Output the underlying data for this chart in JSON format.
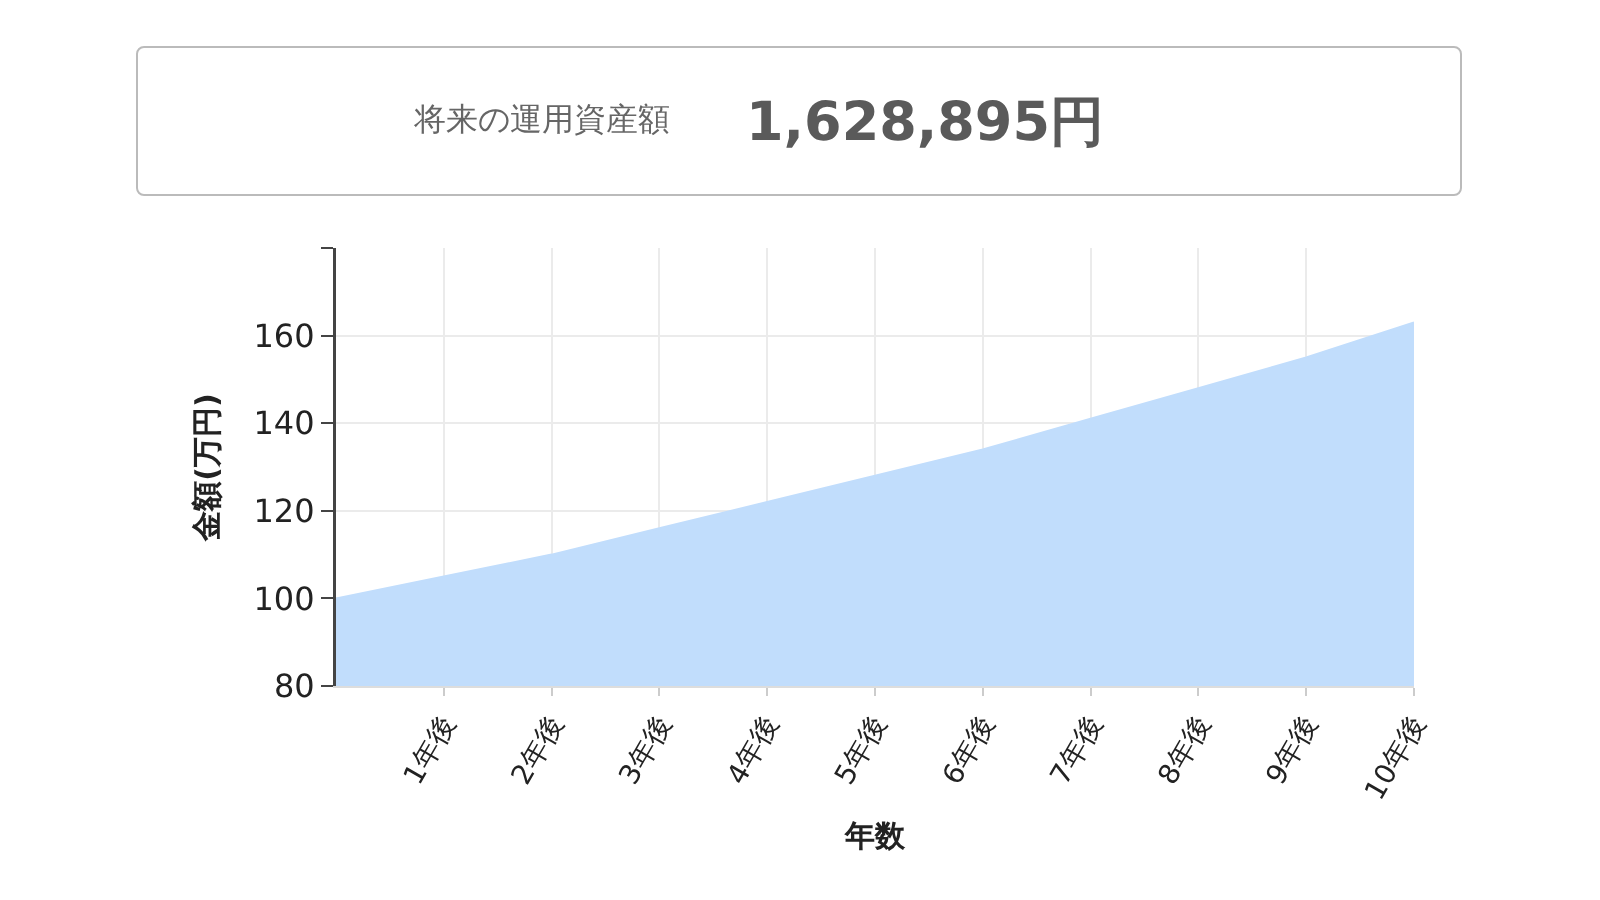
{
  "chart_data": {
    "type": "area",
    "title": "将来の運用資産額",
    "annotations": [
      "1,628,895円"
    ],
    "xlabel": "年数",
    "ylabel": "金額(万円)",
    "x": [
      0,
      1,
      2,
      3,
      4,
      5,
      6,
      7,
      8,
      9,
      10
    ],
    "values": [
      100,
      105,
      110,
      116,
      122,
      128,
      134,
      141,
      148,
      155,
      163
    ],
    "color": "#c1ddfc",
    "xlim": [
      0,
      10
    ],
    "xticks": [
      {
        "value": 1,
        "label": "1年後"
      },
      {
        "value": 2,
        "label": "2年後"
      },
      {
        "value": 3,
        "label": "3年後"
      },
      {
        "value": 4,
        "label": "4年後"
      },
      {
        "value": 5,
        "label": "5年後"
      },
      {
        "value": 6,
        "label": "6年後"
      },
      {
        "value": 7,
        "label": "7年後"
      },
      {
        "value": 8,
        "label": "8年後"
      },
      {
        "value": 9,
        "label": "9年後"
      },
      {
        "value": 10,
        "label": "10年後"
      }
    ],
    "ylim": [
      80,
      180
    ],
    "yticks": [
      80,
      100,
      120,
      140,
      160,
      {
        "value": 180,
        "label": null
      }
    ],
    "grid": true,
    "legend": false
  }
}
